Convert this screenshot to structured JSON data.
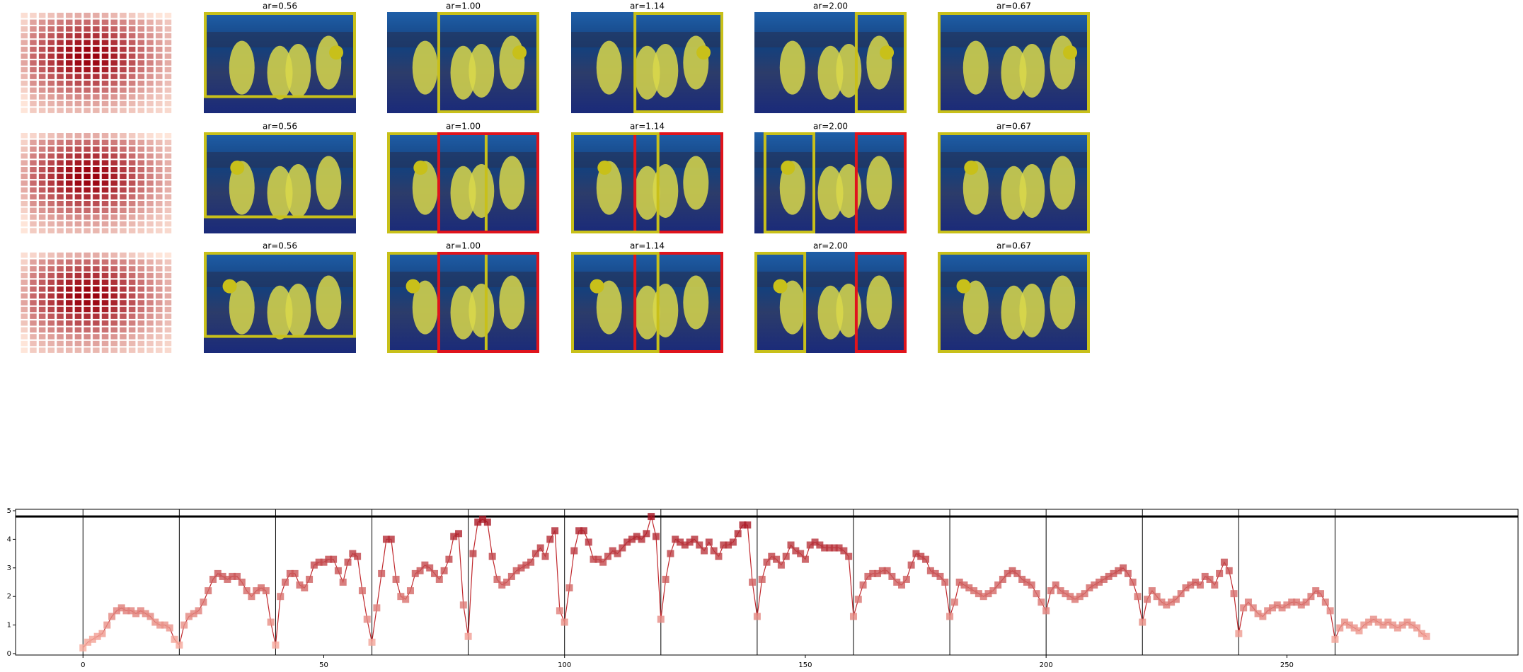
{
  "panels": {
    "rows": [
      {
        "titles": [
          "ar=0.56",
          "ar=1.00",
          "ar=1.14",
          "ar=2.00",
          "ar=0.67"
        ]
      },
      {
        "titles": [
          "ar=0.56",
          "ar=1.00",
          "ar=1.14",
          "ar=2.00",
          "ar=0.67"
        ]
      },
      {
        "titles": [
          "ar=0.56",
          "ar=1.00",
          "ar=1.14",
          "ar=2.00",
          "ar=0.67"
        ]
      }
    ]
  },
  "chart_data": {
    "type": "line",
    "xlim": [
      -14,
      298
    ],
    "ylim": [
      -0.05,
      5.05
    ],
    "xticks": [
      0,
      50,
      100,
      150,
      200,
      250
    ],
    "yticks": [
      0,
      1,
      2,
      3,
      4,
      5
    ],
    "vlines": [
      0,
      20,
      40,
      60,
      80,
      100,
      120,
      140,
      160,
      180,
      200,
      220,
      240,
      260
    ],
    "hline": 4.8,
    "color": "#c0282d",
    "x": [
      0,
      1,
      2,
      3,
      4,
      5,
      6,
      7,
      8,
      9,
      10,
      11,
      12,
      13,
      14,
      15,
      16,
      17,
      18,
      19,
      20,
      21,
      22,
      23,
      24,
      25,
      26,
      27,
      28,
      29,
      30,
      31,
      32,
      33,
      34,
      35,
      36,
      37,
      38,
      39,
      40,
      41,
      42,
      43,
      44,
      45,
      46,
      47,
      48,
      49,
      50,
      51,
      52,
      53,
      54,
      55,
      56,
      57,
      58,
      59,
      60,
      61,
      62,
      63,
      64,
      65,
      66,
      67,
      68,
      69,
      70,
      71,
      72,
      73,
      74,
      75,
      76,
      77,
      78,
      79,
      80,
      81,
      82,
      83,
      84,
      85,
      86,
      87,
      88,
      89,
      90,
      91,
      92,
      93,
      94,
      95,
      96,
      97,
      98,
      99,
      100,
      101,
      102,
      103,
      104,
      105,
      106,
      107,
      108,
      109,
      110,
      111,
      112,
      113,
      114,
      115,
      116,
      117,
      118,
      119,
      120,
      121,
      122,
      123,
      124,
      125,
      126,
      127,
      128,
      129,
      130,
      131,
      132,
      133,
      134,
      135,
      136,
      137,
      138,
      139,
      140,
      141,
      142,
      143,
      144,
      145,
      146,
      147,
      148,
      149,
      150,
      151,
      152,
      153,
      154,
      155,
      156,
      157,
      158,
      159,
      160,
      161,
      162,
      163,
      164,
      165,
      166,
      167,
      168,
      169,
      170,
      171,
      172,
      173,
      174,
      175,
      176,
      177,
      178,
      179,
      180,
      181,
      182,
      183,
      184,
      185,
      186,
      187,
      188,
      189,
      190,
      191,
      192,
      193,
      194,
      195,
      196,
      197,
      198,
      199,
      200,
      201,
      202,
      203,
      204,
      205,
      206,
      207,
      208,
      209,
      210,
      211,
      212,
      213,
      214,
      215,
      216,
      217,
      218,
      219,
      220,
      221,
      222,
      223,
      224,
      225,
      226,
      227,
      228,
      229,
      230,
      231,
      232,
      233,
      234,
      235,
      236,
      237,
      238,
      239,
      240,
      241,
      242,
      243,
      244,
      245,
      246,
      247,
      248,
      249,
      250,
      251,
      252,
      253,
      254,
      255,
      256,
      257,
      258,
      259,
      260,
      261,
      262,
      263,
      264,
      265,
      266,
      267,
      268,
      269,
      270,
      271,
      272,
      273,
      274,
      275,
      276,
      277,
      278,
      279
    ],
    "values": [
      0.2,
      0.4,
      0.5,
      0.6,
      0.7,
      1.0,
      1.3,
      1.5,
      1.6,
      1.5,
      1.5,
      1.4,
      1.5,
      1.4,
      1.3,
      1.1,
      1.0,
      1.0,
      0.9,
      0.5,
      0.3,
      1.0,
      1.3,
      1.4,
      1.5,
      1.8,
      2.2,
      2.6,
      2.8,
      2.7,
      2.6,
      2.7,
      2.7,
      2.5,
      2.2,
      2.0,
      2.2,
      2.3,
      2.2,
      1.1,
      0.3,
      2.0,
      2.5,
      2.8,
      2.8,
      2.4,
      2.3,
      2.6,
      3.1,
      3.2,
      3.2,
      3.3,
      3.3,
      2.9,
      2.5,
      3.2,
      3.5,
      3.4,
      2.2,
      1.2,
      0.4,
      1.6,
      2.8,
      4.0,
      4.0,
      2.6,
      2.0,
      1.9,
      2.2,
      2.8,
      2.9,
      3.1,
      3.0,
      2.8,
      2.6,
      2.9,
      3.3,
      4.1,
      4.2,
      1.7,
      0.6,
      3.5,
      4.6,
      4.7,
      4.6,
      3.4,
      2.6,
      2.4,
      2.5,
      2.7,
      2.9,
      3.0,
      3.1,
      3.2,
      3.5,
      3.7,
      3.4,
      4.0,
      4.3,
      1.5,
      1.1,
      2.3,
      3.6,
      4.3,
      4.3,
      3.9,
      3.3,
      3.3,
      3.2,
      3.4,
      3.6,
      3.5,
      3.7,
      3.9,
      4.0,
      4.1,
      4.0,
      4.2,
      4.8,
      4.1,
      1.2,
      2.6,
      3.5,
      4.0,
      3.9,
      3.8,
      3.9,
      4.0,
      3.8,
      3.6,
      3.9,
      3.6,
      3.4,
      3.8,
      3.8,
      3.9,
      4.2,
      4.5,
      4.5,
      2.5,
      1.3,
      2.6,
      3.2,
      3.4,
      3.3,
      3.1,
      3.4,
      3.8,
      3.6,
      3.5,
      3.3,
      3.8,
      3.9,
      3.8,
      3.7,
      3.7,
      3.7,
      3.7,
      3.6,
      3.4,
      1.3,
      1.9,
      2.4,
      2.7,
      2.8,
      2.8,
      2.9,
      2.9,
      2.7,
      2.5,
      2.4,
      2.6,
      3.1,
      3.5,
      3.4,
      3.3,
      2.9,
      2.8,
      2.7,
      2.5,
      1.3,
      1.8,
      2.5,
      2.4,
      2.3,
      2.2,
      2.1,
      2.0,
      2.1,
      2.2,
      2.4,
      2.6,
      2.8,
      2.9,
      2.8,
      2.6,
      2.5,
      2.4,
      2.1,
      1.8,
      1.5,
      2.2,
      2.4,
      2.2,
      2.1,
      2.0,
      1.9,
      2.0,
      2.1,
      2.3,
      2.4,
      2.5,
      2.6,
      2.7,
      2.8,
      2.9,
      3.0,
      2.8,
      2.5,
      2.0,
      1.1,
      1.9,
      2.2,
      2.0,
      1.8,
      1.7,
      1.8,
      1.9,
      2.1,
      2.3,
      2.4,
      2.5,
      2.4,
      2.7,
      2.6,
      2.4,
      2.8,
      3.2,
      2.9,
      2.1,
      0.7,
      1.6,
      1.8,
      1.6,
      1.4,
      1.3,
      1.5,
      1.6,
      1.7,
      1.6,
      1.7,
      1.8,
      1.8,
      1.7,
      1.8,
      2.0,
      2.2,
      2.1,
      1.8,
      1.5,
      0.5,
      0.9,
      1.1,
      1.0,
      0.9,
      0.8,
      1.0,
      1.1,
      1.2,
      1.1,
      1.0,
      1.1,
      1.0,
      0.9,
      1.0,
      1.1,
      1.0,
      0.9,
      0.7,
      0.6
    ]
  }
}
